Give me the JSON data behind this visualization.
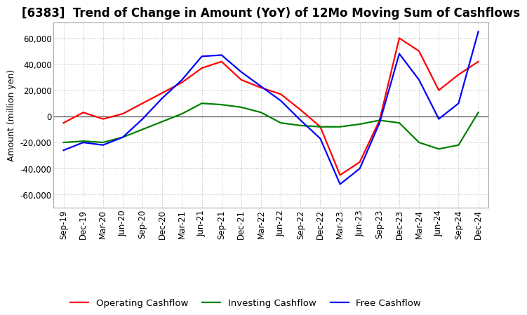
{
  "title": "[6383]  Trend of Change in Amount (YoY) of 12Mo Moving Sum of Cashflows",
  "ylabel": "Amount (million yen)",
  "ylim": [
    -70000,
    72000
  ],
  "yticks": [
    -60000,
    -40000,
    -20000,
    0,
    20000,
    40000,
    60000
  ],
  "x_labels": [
    "Sep-19",
    "Dec-19",
    "Mar-20",
    "Jun-20",
    "Sep-20",
    "Dec-20",
    "Mar-21",
    "Jun-21",
    "Sep-21",
    "Dec-21",
    "Mar-22",
    "Jun-22",
    "Sep-22",
    "Dec-22",
    "Mar-23",
    "Jun-23",
    "Sep-23",
    "Dec-23",
    "Mar-24",
    "Jun-24",
    "Sep-24",
    "Dec-24"
  ],
  "operating": [
    -5000,
    3000,
    -2000,
    2000,
    10000,
    18000,
    26000,
    37000,
    42000,
    28000,
    22000,
    17000,
    5000,
    -8000,
    -45000,
    -35000,
    -3000,
    60000,
    50000,
    20000,
    32000,
    42000
  ],
  "investing": [
    -20000,
    -19000,
    -20000,
    -16000,
    -10000,
    -4000,
    2000,
    10000,
    9000,
    7000,
    3000,
    -5000,
    -7000,
    -8000,
    -8000,
    -6000,
    -3000,
    -5000,
    -20000,
    -25000,
    -22000,
    3000
  ],
  "free": [
    -26000,
    -20000,
    -22000,
    -16000,
    -2000,
    14000,
    28000,
    46000,
    47000,
    34000,
    23000,
    12000,
    -3000,
    -17000,
    -52000,
    -40000,
    -5000,
    48000,
    28000,
    -2000,
    10000,
    65000
  ],
  "operating_color": "#ff0000",
  "investing_color": "#008000",
  "free_color": "#0000ff",
  "background_color": "#ffffff",
  "grid_color": "#bbbbbb",
  "title_fontsize": 12,
  "axis_fontsize": 9,
  "tick_fontsize": 8.5
}
